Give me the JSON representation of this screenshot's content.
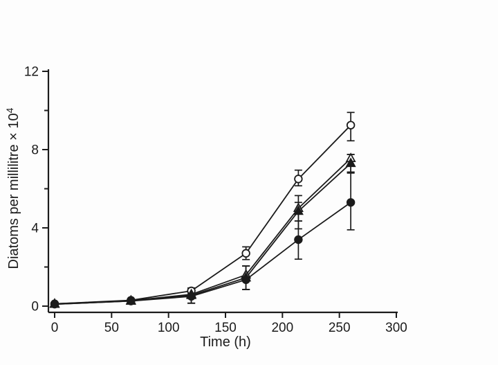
{
  "figure": {
    "background": "#fdfdfd",
    "ink_color": "#1b1b1b"
  },
  "chart_data": {
    "type": "line",
    "title": "",
    "xlabel": "Time (h)",
    "ylabel": "Diatoms per millilitre × 10⁴",
    "ylabel_base": "Diatoms per millilitre × 10",
    "ylabel_exponent": "4",
    "xlim": [
      0,
      300
    ],
    "ylim": [
      0,
      12
    ],
    "xticks": [
      0,
      50,
      100,
      150,
      200,
      250,
      300
    ],
    "yticks_major": [
      0,
      4,
      8,
      12
    ],
    "yticks_minor": [
      2,
      6,
      10
    ],
    "grid": "off",
    "legend": "none",
    "x": [
      0,
      67,
      120,
      168,
      214,
      260
    ],
    "series": [
      {
        "name": "open-circle",
        "marker": "circle",
        "fill": "open",
        "values": [
          0.12,
          0.3,
          0.78,
          2.7,
          6.5,
          9.25
        ],
        "err_lo": [
          0,
          0,
          0.15,
          0.32,
          0.35,
          0.8
        ],
        "err_hi": [
          0,
          0,
          0.15,
          0.33,
          0.45,
          0.65
        ]
      },
      {
        "name": "open-triangle",
        "marker": "triangle",
        "fill": "open",
        "values": [
          0.12,
          0.28,
          0.6,
          1.6,
          5.0,
          7.55
        ],
        "err_lo": [
          0,
          0,
          0.45,
          0.75,
          0.65,
          0.7
        ],
        "err_hi": [
          0,
          0,
          0.3,
          0.45,
          0.65,
          0.2
        ]
      },
      {
        "name": "filled-triangle",
        "marker": "triangle",
        "fill": "solid",
        "values": [
          0.1,
          0.26,
          0.55,
          1.45,
          4.85,
          7.3
        ],
        "err_lo": [
          0,
          0,
          0.4,
          0.6,
          0.9,
          0.45
        ],
        "err_hi": [
          0,
          0,
          0.3,
          0.6,
          0.45,
          0.45
        ]
      },
      {
        "name": "filled-circle",
        "marker": "circle",
        "fill": "solid",
        "values": [
          0.1,
          0.26,
          0.5,
          1.35,
          3.4,
          5.3
        ],
        "err_lo": [
          0,
          0,
          0.35,
          0.5,
          1.0,
          1.4
        ],
        "err_hi": [
          0,
          0,
          0.3,
          0.7,
          0.95,
          1.5
        ]
      }
    ]
  }
}
